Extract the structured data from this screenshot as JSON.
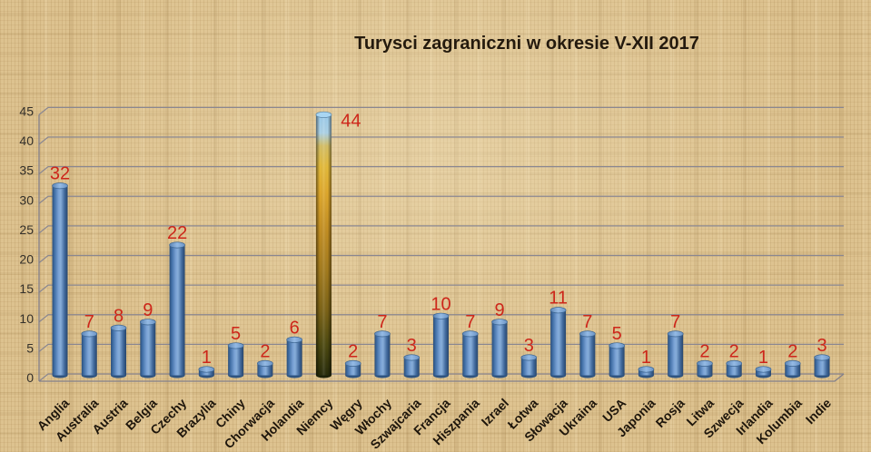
{
  "chart_data": {
    "type": "bar",
    "style": "3d-cylinder",
    "title": "Turysci zagraniczni w okresie V-XII 2017",
    "categories": [
      "Anglia",
      "Australia",
      "Austria",
      "Belgia",
      "Czechy",
      "Brazylia",
      "Chiny",
      "Chorwacja",
      "Holandia",
      "Niemcy",
      "Węgry",
      "Włochy",
      "Szwajcaria",
      "Francja",
      "Hiszpania",
      "Izrael",
      "Łotwa",
      "Słowacja",
      "Ukraina",
      "USA",
      "Japonia",
      "Rosja",
      "Litwa",
      "Szwecja",
      "Irlandia",
      "Kolumbia",
      "Indie"
    ],
    "values": [
      32,
      7,
      8,
      9,
      22,
      1,
      5,
      2,
      6,
      44,
      2,
      7,
      3,
      10,
      7,
      9,
      3,
      11,
      7,
      5,
      1,
      7,
      2,
      2,
      1,
      2,
      3
    ],
    "xlabel": "",
    "ylabel": "",
    "ylim": [
      0,
      45
    ],
    "yticks": [
      0,
      5,
      10,
      15,
      20,
      25,
      30,
      35,
      40,
      45
    ],
    "grid": true,
    "legend": false,
    "data_labels": true,
    "highlight_category": "Niemcy",
    "colors": {
      "bar": "#4f81bd",
      "highlight_bar": "sky-gold-dark gradient (photo fill)",
      "data_label": "#cd261a",
      "gridline": "#8a8791",
      "axis_text": "#34302a",
      "category_text": "#1d150b",
      "title_text": "#241a0e",
      "background": "#ddc28f"
    }
  }
}
